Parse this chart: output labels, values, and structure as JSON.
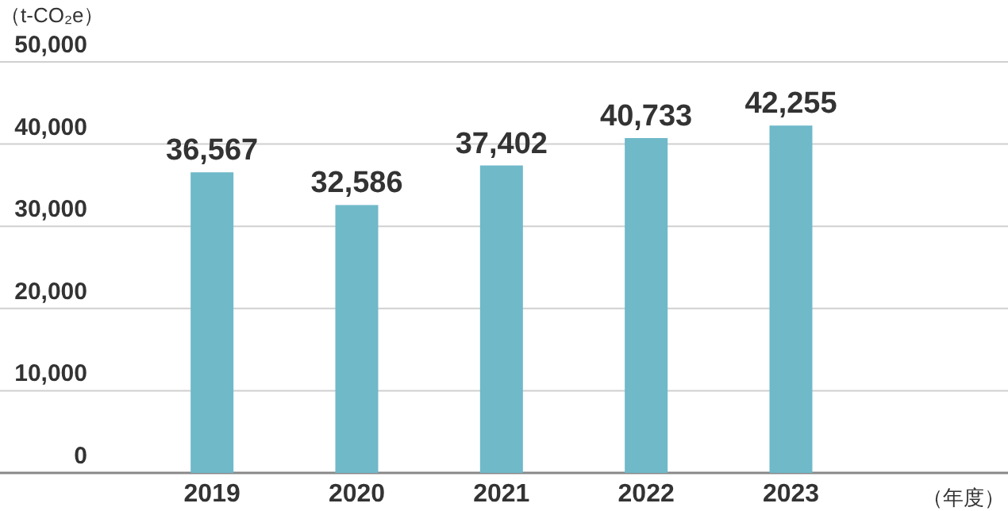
{
  "chart_data": {
    "type": "bar",
    "ylabel": "（t-CO₂e）",
    "xlabel": "（年度）",
    "categories": [
      "2019",
      "2020",
      "2021",
      "2022",
      "2023"
    ],
    "values": [
      36567,
      32586,
      37402,
      40733,
      42255
    ],
    "value_labels": [
      "36,567",
      "32,586",
      "37,402",
      "40,733",
      "42,255"
    ],
    "color": "#6fb9c9",
    "ylim": [
      0,
      50000
    ],
    "yticks": [
      0,
      {
        "value": 10000,
        "label": "10,000"
      },
      {
        "value": 20000,
        "label": "20,000"
      },
      {
        "value": 30000,
        "label": "30,000"
      },
      {
        "value": 40000,
        "label": "40,000"
      },
      {
        "value": 50000,
        "label": "50,000"
      }
    ],
    "grid": "y"
  }
}
